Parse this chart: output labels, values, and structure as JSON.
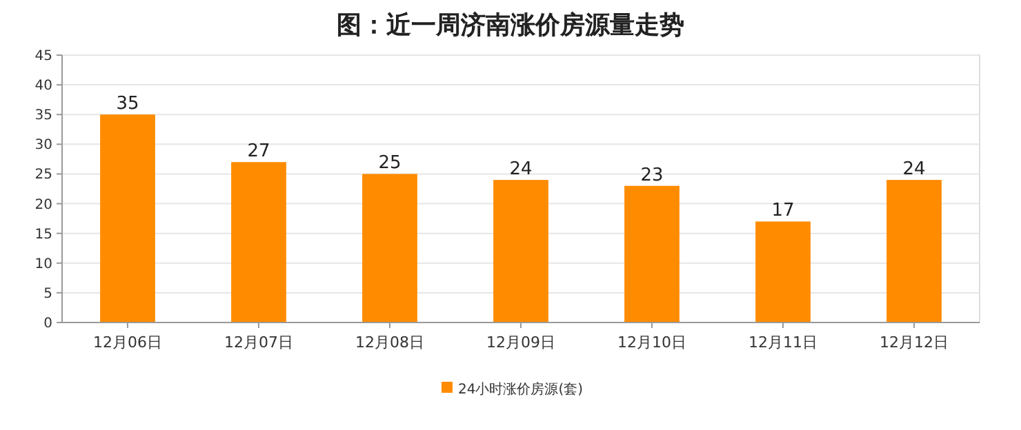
{
  "chart_data": {
    "type": "bar",
    "title": "图：近一周济南涨价房源量走势",
    "categories": [
      "12月06日",
      "12月07日",
      "12月08日",
      "12月09日",
      "12月10日",
      "12月11日",
      "12月12日"
    ],
    "series": [
      {
        "name": "24小时涨价房源(套)",
        "color": "#ff8c00",
        "values": [
          35,
          27,
          25,
          24,
          23,
          17,
          24
        ]
      }
    ],
    "ylim": [
      0,
      45
    ],
    "yticks": [
      0,
      5,
      10,
      15,
      20,
      25,
      30,
      35,
      40,
      45
    ],
    "grid": "y",
    "legend": "bottom",
    "data_labels": true
  }
}
